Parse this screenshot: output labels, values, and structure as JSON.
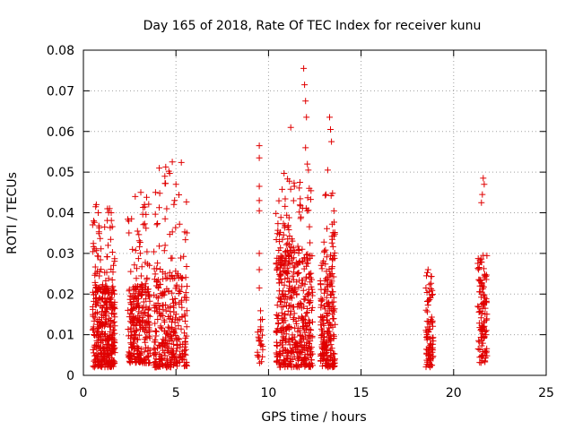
{
  "chart_data": {
    "type": "scatter",
    "title": "Day 165 of 2018, Rate Of TEC Index for receiver kunu",
    "xlabel": "GPS time / hours",
    "ylabel": "ROTI / TECUs",
    "xlim": [
      0,
      25
    ],
    "ylim": [
      0,
      0.08
    ],
    "grid": true,
    "x_ticks": [
      0,
      5,
      10,
      15,
      20,
      25
    ],
    "x_tick_labels": [
      "0",
      "5",
      "10",
      "15",
      "20",
      "25"
    ],
    "y_ticks": [
      0,
      0.01,
      0.02,
      0.03,
      0.04,
      0.05,
      0.06,
      0.07,
      0.08
    ],
    "y_tick_labels": [
      "0",
      "0.01",
      "0.02",
      "0.03",
      "0.04",
      "0.05",
      "0.06",
      "0.07",
      "0.08"
    ],
    "marker": "+",
    "series_color": "#e00000",
    "clusters": [
      {
        "x_range": [
          0.5,
          1.7
        ],
        "y_range": [
          0.002,
          0.022
        ],
        "count": 320
      },
      {
        "x_range": [
          0.5,
          1.7
        ],
        "y_range": [
          0.02,
          0.042
        ],
        "count": 60
      },
      {
        "x_range": [
          2.4,
          3.6
        ],
        "y_range": [
          0.003,
          0.022
        ],
        "count": 230
      },
      {
        "x_range": [
          2.4,
          3.6
        ],
        "y_range": [
          0.02,
          0.045
        ],
        "count": 40
      },
      {
        "x_range": [
          3.8,
          5.6
        ],
        "y_range": [
          0.002,
          0.025
        ],
        "count": 280
      },
      {
        "x_range": [
          3.8,
          5.6
        ],
        "y_range": [
          0.025,
          0.053
        ],
        "count": 40
      },
      {
        "x_range": [
          9.4,
          9.7
        ],
        "y_range": [
          0.003,
          0.016
        ],
        "count": 25
      },
      {
        "x_range": [
          10.4,
          12.4
        ],
        "y_range": [
          0.002,
          0.03
        ],
        "count": 420
      },
      {
        "x_range": [
          10.4,
          12.4
        ],
        "y_range": [
          0.03,
          0.05
        ],
        "count": 70
      },
      {
        "x_range": [
          12.8,
          13.6
        ],
        "y_range": [
          0.002,
          0.03
        ],
        "count": 200
      },
      {
        "x_range": [
          12.8,
          13.6
        ],
        "y_range": [
          0.03,
          0.045
        ],
        "count": 20
      },
      {
        "x_range": [
          18.5,
          18.9
        ],
        "y_range": [
          0.002,
          0.026
        ],
        "count": 90
      },
      {
        "x_range": [
          21.3,
          21.8
        ],
        "y_range": [
          0.003,
          0.03
        ],
        "count": 110
      }
    ],
    "points": [
      [
        0.7,
        0.042
      ],
      [
        0.8,
        0.04
      ],
      [
        1.3,
        0.041
      ],
      [
        1.5,
        0.04
      ],
      [
        2.6,
        0.0385
      ],
      [
        2.8,
        0.044
      ],
      [
        3.1,
        0.045
      ],
      [
        3.3,
        0.042
      ],
      [
        4.1,
        0.051
      ],
      [
        4.4,
        0.049
      ],
      [
        4.5,
        0.041
      ],
      [
        4.8,
        0.0525
      ],
      [
        5.0,
        0.047
      ],
      [
        9.5,
        0.0565
      ],
      [
        9.5,
        0.0535
      ],
      [
        9.5,
        0.0465
      ],
      [
        9.5,
        0.043
      ],
      [
        9.5,
        0.0405
      ],
      [
        9.5,
        0.03
      ],
      [
        9.5,
        0.026
      ],
      [
        9.5,
        0.0215
      ],
      [
        11.2,
        0.061
      ],
      [
        11.4,
        0.0465
      ],
      [
        11.7,
        0.0475
      ],
      [
        11.9,
        0.0755
      ],
      [
        11.95,
        0.0715
      ],
      [
        12.0,
        0.0675
      ],
      [
        12.05,
        0.0635
      ],
      [
        12.0,
        0.056
      ],
      [
        12.1,
        0.052
      ],
      [
        12.15,
        0.0505
      ],
      [
        12.2,
        0.046
      ],
      [
        13.3,
        0.0635
      ],
      [
        13.35,
        0.0605
      ],
      [
        13.4,
        0.0575
      ],
      [
        13.2,
        0.0505
      ],
      [
        13.1,
        0.0445
      ],
      [
        21.6,
        0.0485
      ],
      [
        21.65,
        0.047
      ],
      [
        21.55,
        0.0445
      ],
      [
        21.5,
        0.0425
      ],
      [
        21.6,
        0.0295
      ]
    ]
  }
}
